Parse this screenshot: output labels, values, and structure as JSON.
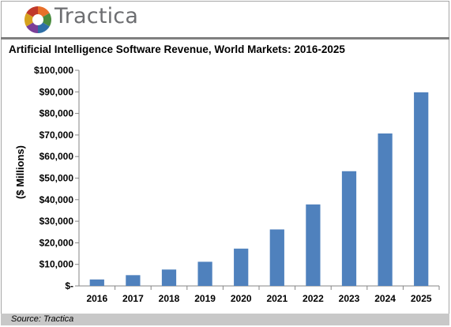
{
  "brand": {
    "name": "Tractica",
    "colors": [
      "#e8702a",
      "#4a8c3f",
      "#2e6fa7",
      "#7b3f98",
      "#d6a21e",
      "#c0392b"
    ]
  },
  "header": {
    "title": "Artificial Intelligence Software Revenue, World Markets: 2016-2025"
  },
  "footer": {
    "source": "Source: Tractica"
  },
  "chart_data": {
    "type": "bar",
    "title": "Artificial Intelligence Software Revenue, World Markets: 2016-2025",
    "xlabel": "",
    "ylabel": "($ Millions)",
    "categories": [
      "2016",
      "2017",
      "2018",
      "2019",
      "2020",
      "2021",
      "2022",
      "2023",
      "2024",
      "2025"
    ],
    "values": [
      3000,
      5000,
      7600,
      11200,
      17300,
      26200,
      37800,
      53200,
      70700,
      89800
    ],
    "ylim": [
      0,
      100000
    ],
    "yticks": [
      0,
      10000,
      20000,
      30000,
      40000,
      50000,
      60000,
      70000,
      80000,
      90000,
      100000
    ],
    "ytick_labels": [
      "$-",
      "$10,000",
      "$20,000",
      "$30,000",
      "$40,000",
      "$50,000",
      "$60,000",
      "$70,000",
      "$80,000",
      "$90,000",
      "$100,000"
    ],
    "bar_color": "#4f81bd",
    "grid": false,
    "legend": "none"
  }
}
